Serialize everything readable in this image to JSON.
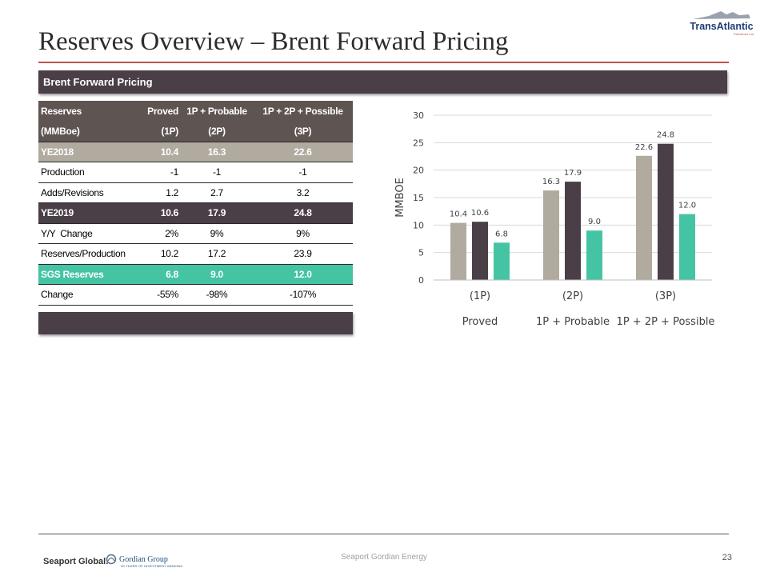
{
  "title": "Reserves Overview – Brent Forward Pricing",
  "section_label": "Brent Forward Pricing",
  "logo": {
    "brand": "TransAtlantic",
    "sub": "Petroleum Ltd."
  },
  "table": {
    "header1": [
      "Reserves",
      "Proved",
      "1P + Probable",
      "1P + 2P + Possible"
    ],
    "header2": [
      "(MMBoe)",
      "(1P)",
      "(2P)",
      "(3P)"
    ],
    "rows": [
      [
        "YE2018",
        "10.4",
        "16.3",
        "22.6"
      ],
      [
        "Production",
        "-1",
        "-1",
        "-1"
      ],
      [
        "Adds/Revisions",
        "1.2",
        "2.7",
        "3.2"
      ],
      [
        "YE2019",
        "10.6",
        "17.9",
        "24.8"
      ],
      [
        "Y/Y  Change",
        "2%",
        "9%",
        "9%"
      ],
      [
        "Reserves/Production",
        "10.2",
        "17.2",
        "23.9"
      ],
      [
        "SGS Reserves",
        "6.8",
        "9.0",
        "12.0"
      ],
      [
        "Change",
        "-55%",
        "-98%",
        "-107%"
      ]
    ]
  },
  "chart_data": {
    "type": "bar",
    "categories": [
      "(1P)",
      "(2P)",
      "(3P)"
    ],
    "category_sublabels": [
      "Proved",
      "1P + Probable",
      "1P + 2P + Possible"
    ],
    "series": [
      {
        "name": "YE2018",
        "values": [
          10.4,
          16.3,
          22.6
        ],
        "color": "#b1aa9f"
      },
      {
        "name": "YE2019",
        "values": [
          10.6,
          17.9,
          24.8
        ],
        "color": "#4a3e47"
      },
      {
        "name": "SGS Reserves",
        "values": [
          6.8,
          9.0,
          12.0
        ],
        "color": "#45c4a3"
      }
    ],
    "ylabel": "MMBOE",
    "ylim": [
      0,
      30
    ],
    "yticks": [
      0,
      5,
      10,
      15,
      20,
      25,
      30
    ],
    "grid": true,
    "legend": "none"
  },
  "footer": {
    "center": "Seaport Gordian Energy",
    "page": "23",
    "left_brand": "Seaport Global.",
    "partner": "Gordian Group",
    "partner_tagline": "30 YEARS OF INVESTMENT BANKING"
  }
}
